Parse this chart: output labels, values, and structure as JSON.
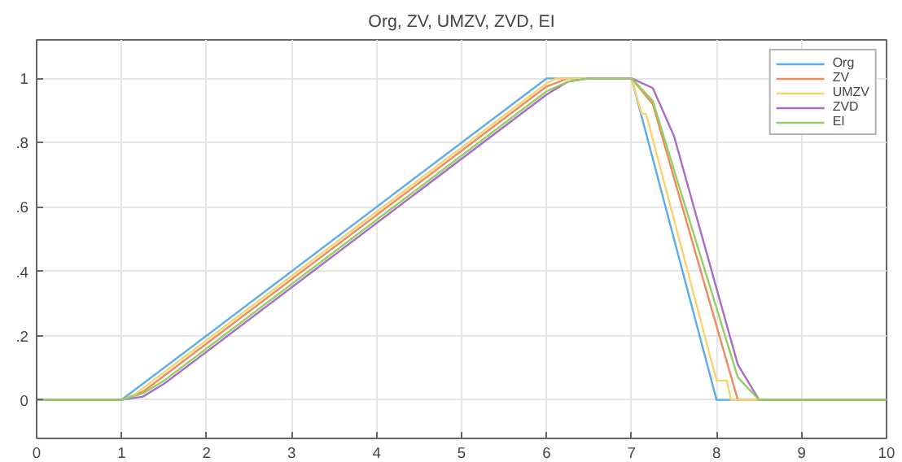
{
  "chart_data": {
    "type": "line",
    "title": "Org, ZV, UMZV, ZVD, EI",
    "xlim": [
      0,
      10
    ],
    "xticks": [
      0,
      1,
      2,
      3,
      4,
      5,
      6,
      7,
      8,
      9,
      10
    ],
    "ylim": [
      -0.12,
      1.12
    ],
    "yticks": [
      0,
      {
        "value": 0.2,
        "label": ".2"
      },
      {
        "value": 0.4,
        "label": ".4"
      },
      {
        "value": 0.6,
        "label": ".6"
      },
      {
        "value": 0.8,
        "label": ".8"
      },
      1
    ],
    "grid": true,
    "legend": "top right",
    "series": [
      {
        "name": "Org",
        "color": "#5aaee6",
        "x": [
          0,
          1,
          6,
          7,
          8,
          10
        ],
        "values": [
          0,
          0,
          1,
          1,
          0,
          0
        ]
      },
      {
        "name": "ZV",
        "color": "#f08a5d",
        "x": [
          0,
          1,
          1.25,
          6,
          6.25,
          7,
          7.25,
          8.25,
          10
        ],
        "values": [
          0,
          0,
          0.025,
          0.975,
          1,
          1,
          0.92,
          0,
          0
        ]
      },
      {
        "name": "UMZV",
        "color": "#fbd36e",
        "x": [
          0,
          1,
          1.12,
          6,
          6.12,
          7,
          7.12,
          7.17,
          8.0,
          8.12,
          8.17,
          10
        ],
        "values": [
          0,
          0,
          0.01,
          0.985,
          1,
          1,
          0.89,
          0.89,
          0.06,
          0.06,
          0,
          0
        ]
      },
      {
        "name": "ZVD",
        "color": "#a96cc8",
        "x": [
          0,
          1,
          1.25,
          1.5,
          6,
          6.25,
          6.5,
          7,
          7.25,
          7.5,
          8.25,
          8.5,
          10
        ],
        "values": [
          0,
          0,
          0.01,
          0.05,
          0.95,
          0.99,
          1,
          1,
          0.97,
          0.82,
          0.11,
          0,
          0
        ]
      },
      {
        "name": "EI",
        "color": "#93cf63",
        "x": [
          0,
          1,
          1.25,
          1.5,
          6,
          6.25,
          6.5,
          7,
          7.25,
          8.25,
          8.5,
          10
        ],
        "values": [
          0,
          0,
          0.02,
          0.06,
          0.96,
          0.99,
          1,
          1,
          0.93,
          0.07,
          0,
          0
        ]
      }
    ]
  }
}
